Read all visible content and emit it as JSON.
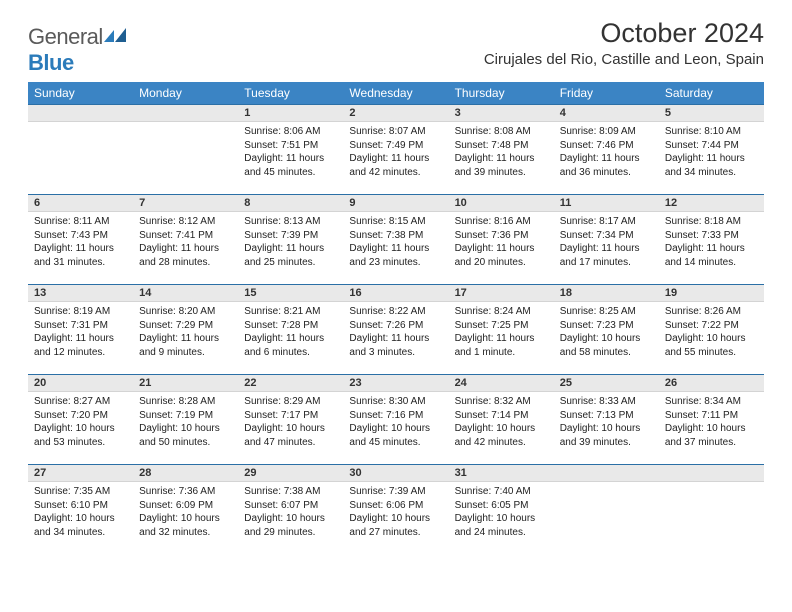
{
  "logo": {
    "text_general": "General",
    "text_blue": "Blue"
  },
  "header": {
    "month_title": "October 2024",
    "location": "Cirujales del Rio, Castille and Leon, Spain"
  },
  "weekdays": [
    "Sunday",
    "Monday",
    "Tuesday",
    "Wednesday",
    "Thursday",
    "Friday",
    "Saturday"
  ],
  "colors": {
    "header_bg": "#3b84c4",
    "daynum_bg": "#e9e9e9",
    "daynum_border_top": "#2b6fa6"
  },
  "days": [
    {
      "n": "",
      "empty": true
    },
    {
      "n": "",
      "empty": true
    },
    {
      "n": "1",
      "sunrise": "8:06 AM",
      "sunset": "7:51 PM",
      "daylight": "11 hours and 45 minutes."
    },
    {
      "n": "2",
      "sunrise": "8:07 AM",
      "sunset": "7:49 PM",
      "daylight": "11 hours and 42 minutes."
    },
    {
      "n": "3",
      "sunrise": "8:08 AM",
      "sunset": "7:48 PM",
      "daylight": "11 hours and 39 minutes."
    },
    {
      "n": "4",
      "sunrise": "8:09 AM",
      "sunset": "7:46 PM",
      "daylight": "11 hours and 36 minutes."
    },
    {
      "n": "5",
      "sunrise": "8:10 AM",
      "sunset": "7:44 PM",
      "daylight": "11 hours and 34 minutes."
    },
    {
      "n": "6",
      "sunrise": "8:11 AM",
      "sunset": "7:43 PM",
      "daylight": "11 hours and 31 minutes."
    },
    {
      "n": "7",
      "sunrise": "8:12 AM",
      "sunset": "7:41 PM",
      "daylight": "11 hours and 28 minutes."
    },
    {
      "n": "8",
      "sunrise": "8:13 AM",
      "sunset": "7:39 PM",
      "daylight": "11 hours and 25 minutes."
    },
    {
      "n": "9",
      "sunrise": "8:15 AM",
      "sunset": "7:38 PM",
      "daylight": "11 hours and 23 minutes."
    },
    {
      "n": "10",
      "sunrise": "8:16 AM",
      "sunset": "7:36 PM",
      "daylight": "11 hours and 20 minutes."
    },
    {
      "n": "11",
      "sunrise": "8:17 AM",
      "sunset": "7:34 PM",
      "daylight": "11 hours and 17 minutes."
    },
    {
      "n": "12",
      "sunrise": "8:18 AM",
      "sunset": "7:33 PM",
      "daylight": "11 hours and 14 minutes."
    },
    {
      "n": "13",
      "sunrise": "8:19 AM",
      "sunset": "7:31 PM",
      "daylight": "11 hours and 12 minutes."
    },
    {
      "n": "14",
      "sunrise": "8:20 AM",
      "sunset": "7:29 PM",
      "daylight": "11 hours and 9 minutes."
    },
    {
      "n": "15",
      "sunrise": "8:21 AM",
      "sunset": "7:28 PM",
      "daylight": "11 hours and 6 minutes."
    },
    {
      "n": "16",
      "sunrise": "8:22 AM",
      "sunset": "7:26 PM",
      "daylight": "11 hours and 3 minutes."
    },
    {
      "n": "17",
      "sunrise": "8:24 AM",
      "sunset": "7:25 PM",
      "daylight": "11 hours and 1 minute."
    },
    {
      "n": "18",
      "sunrise": "8:25 AM",
      "sunset": "7:23 PM",
      "daylight": "10 hours and 58 minutes."
    },
    {
      "n": "19",
      "sunrise": "8:26 AM",
      "sunset": "7:22 PM",
      "daylight": "10 hours and 55 minutes."
    },
    {
      "n": "20",
      "sunrise": "8:27 AM",
      "sunset": "7:20 PM",
      "daylight": "10 hours and 53 minutes."
    },
    {
      "n": "21",
      "sunrise": "8:28 AM",
      "sunset": "7:19 PM",
      "daylight": "10 hours and 50 minutes."
    },
    {
      "n": "22",
      "sunrise": "8:29 AM",
      "sunset": "7:17 PM",
      "daylight": "10 hours and 47 minutes."
    },
    {
      "n": "23",
      "sunrise": "8:30 AM",
      "sunset": "7:16 PM",
      "daylight": "10 hours and 45 minutes."
    },
    {
      "n": "24",
      "sunrise": "8:32 AM",
      "sunset": "7:14 PM",
      "daylight": "10 hours and 42 minutes."
    },
    {
      "n": "25",
      "sunrise": "8:33 AM",
      "sunset": "7:13 PM",
      "daylight": "10 hours and 39 minutes."
    },
    {
      "n": "26",
      "sunrise": "8:34 AM",
      "sunset": "7:11 PM",
      "daylight": "10 hours and 37 minutes."
    },
    {
      "n": "27",
      "sunrise": "7:35 AM",
      "sunset": "6:10 PM",
      "daylight": "10 hours and 34 minutes."
    },
    {
      "n": "28",
      "sunrise": "7:36 AM",
      "sunset": "6:09 PM",
      "daylight": "10 hours and 32 minutes."
    },
    {
      "n": "29",
      "sunrise": "7:38 AM",
      "sunset": "6:07 PM",
      "daylight": "10 hours and 29 minutes."
    },
    {
      "n": "30",
      "sunrise": "7:39 AM",
      "sunset": "6:06 PM",
      "daylight": "10 hours and 27 minutes."
    },
    {
      "n": "31",
      "sunrise": "7:40 AM",
      "sunset": "6:05 PM",
      "daylight": "10 hours and 24 minutes."
    },
    {
      "n": "",
      "empty": true
    },
    {
      "n": "",
      "empty": true
    }
  ],
  "labels": {
    "sunrise": "Sunrise:",
    "sunset": "Sunset:",
    "daylight": "Daylight:"
  }
}
